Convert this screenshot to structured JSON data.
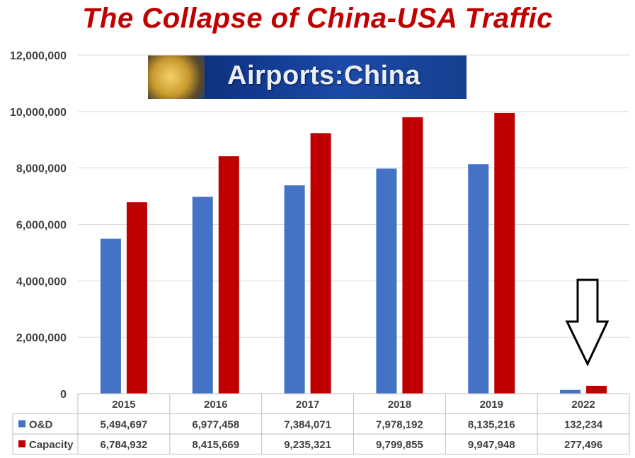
{
  "chart_data": {
    "type": "bar",
    "title": "The Collapse of China-USA Traffic",
    "categories": [
      "2015",
      "2016",
      "2017",
      "2018",
      "2019",
      "2022"
    ],
    "series": [
      {
        "name": "O&D",
        "color": "#4472c4",
        "values": [
          5494697,
          6977458,
          7384071,
          7978192,
          8135216,
          132234
        ],
        "labels": [
          "5,494,697",
          "6,977,458",
          "7,384,071",
          "7,978,192",
          "8,135,216",
          "132,234"
        ]
      },
      {
        "name": "Capacity",
        "color": "#c00000",
        "values": [
          6784932,
          8415669,
          9235321,
          9799855,
          9947948,
          277496
        ],
        "labels": [
          "6,784,932",
          "8,415,669",
          "9,235,321",
          "9,799,855",
          "9,947,948",
          "277,496"
        ]
      }
    ],
    "ylim": [
      0,
      12000000
    ],
    "yticks": [
      0,
      2000000,
      4000000,
      6000000,
      8000000,
      10000000,
      12000000
    ],
    "ytick_labels": [
      "0",
      "2,000,000",
      "4,000,000",
      "6,000,000",
      "8,000,000",
      "10,000,000",
      "12,000,000"
    ],
    "grid": true,
    "legend": "data-table",
    "annotation": "down-arrow-over-2022"
  },
  "logo": {
    "text": "Airports:China"
  }
}
